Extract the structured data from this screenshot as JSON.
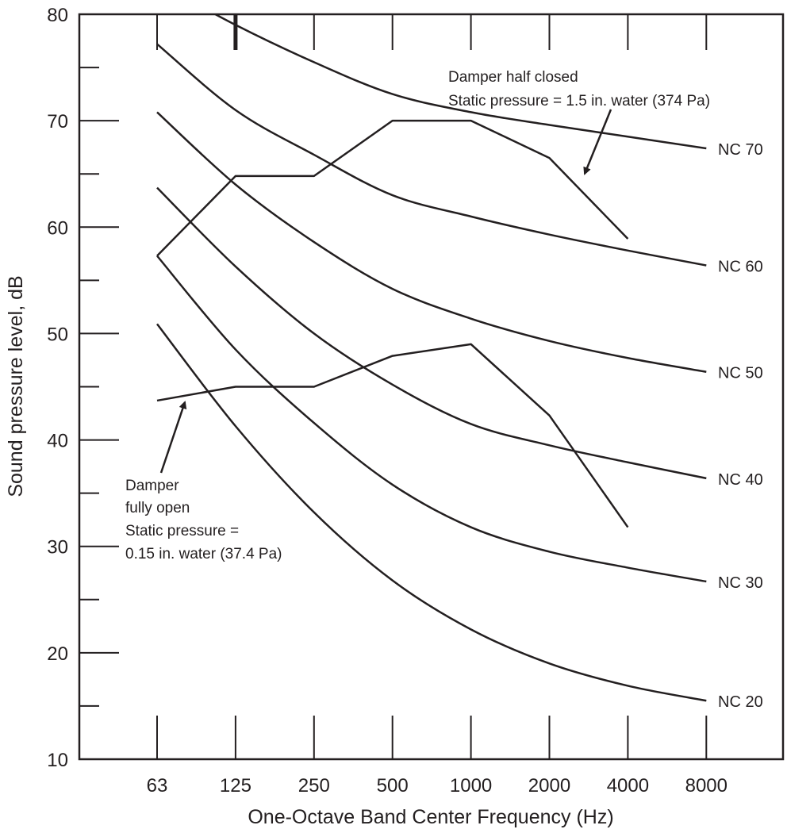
{
  "chart_data": {
    "type": "line",
    "xlabel": "One-Octave Band Center Frequency (Hz)",
    "ylabel": "Sound pressure level, dB",
    "categories": [
      "63",
      "125",
      "250",
      "500",
      "1000",
      "2000",
      "4000",
      "8000"
    ],
    "ylim": [
      10,
      80
    ],
    "yticks": [
      "10",
      "20",
      "30",
      "40",
      "50",
      "60",
      "70",
      "80"
    ],
    "grid": false,
    "series": [
      {
        "name": "NC 70",
        "values": [
          83,
          79,
          75.5,
          72.5,
          70.8,
          69.6,
          68.5,
          67.4
        ]
      },
      {
        "name": "NC 60",
        "values": [
          77.2,
          71,
          66.8,
          63,
          61,
          59.3,
          57.8,
          56.4
        ]
      },
      {
        "name": "NC 50",
        "values": [
          70.8,
          64,
          58.6,
          54.2,
          51.4,
          49.3,
          47.7,
          46.4
        ]
      },
      {
        "name": "NC 40",
        "values": [
          63.7,
          56.3,
          50,
          45.2,
          41.5,
          39.5,
          37.9,
          36.4
        ]
      },
      {
        "name": "NC 30",
        "values": [
          57.3,
          48.5,
          41.6,
          35.8,
          31.8,
          29.5,
          28,
          26.7
        ]
      },
      {
        "name": "NC 20",
        "values": [
          50.9,
          41.3,
          33.2,
          26.8,
          22.2,
          19,
          16.9,
          15.5
        ]
      }
    ],
    "measured": [
      {
        "values": [
          57.3,
          64.8,
          64.8,
          70,
          70,
          66.5,
          58.9
        ]
      },
      {
        "values": [
          43.7,
          45.0,
          45.0,
          47.9,
          49.0,
          42.3,
          31.8
        ]
      }
    ],
    "annotations": {
      "half_closed": [
        "Damper half closed",
        "Static pressure = 1.5 in. water (374 Pa)"
      ],
      "fully_open": [
        "Damper",
        "fully open",
        "Static pressure =",
        "0.15 in. water (37.4 Pa)"
      ]
    },
    "colors": {
      "line": "#231f20",
      "background": "#ffffff"
    }
  }
}
